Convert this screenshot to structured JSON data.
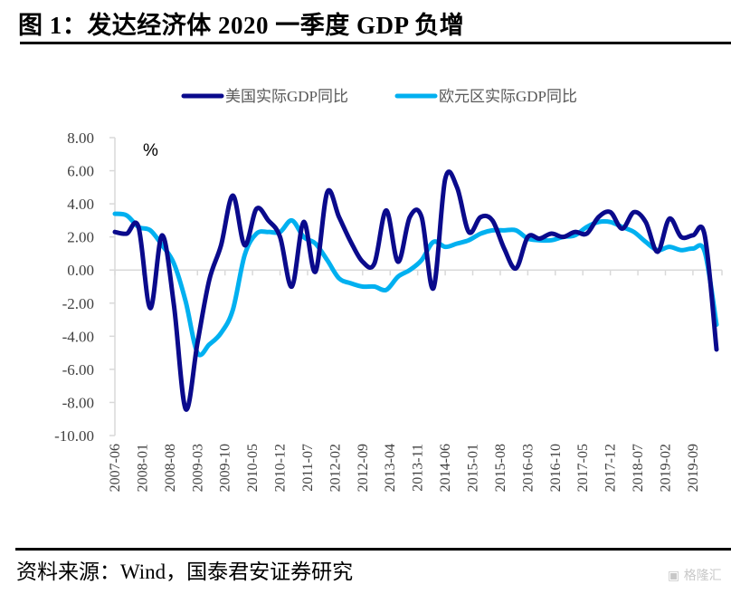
{
  "header": {
    "title": "图 1：发达经济体 2020 一季度 GDP 负增"
  },
  "footer": {
    "source": "资料来源：Wind，国泰君安证券研究",
    "watermark": "格隆汇"
  },
  "chart_data": {
    "type": "line",
    "title": "图 1：发达经济体 2020 一季度 GDP 负增",
    "unit_label": "%",
    "xlabel": "",
    "ylabel": "%",
    "ylim": [
      -10,
      8
    ],
    "yticks": [
      8,
      6,
      4,
      2,
      0,
      -2,
      -4,
      -6,
      -8,
      -10
    ],
    "ytick_labels": [
      "8.00",
      "6.00",
      "4.00",
      "2.00",
      "0.00",
      "-2.00",
      "-4.00",
      "-6.00",
      "-8.00",
      "-10.00"
    ],
    "xtick_labels": [
      "2007-06",
      "2008-01",
      "2008-08",
      "2009-03",
      "2009-10",
      "2010-05",
      "2010-12",
      "2011-07",
      "2012-02",
      "2012-09",
      "2013-04",
      "2013-11",
      "2014-06",
      "2015-01",
      "2015-08",
      "2016-03",
      "2016-10",
      "2017-05",
      "2017-12",
      "2018-07",
      "2019-02",
      "2019-09"
    ],
    "grid": false,
    "legend_position": "top",
    "x": [
      "2007Q2",
      "2007Q3",
      "2007Q4",
      "2008Q1",
      "2008Q2",
      "2008Q3",
      "2008Q4",
      "2009Q1",
      "2009Q2",
      "2009Q3",
      "2009Q4",
      "2010Q1",
      "2010Q2",
      "2010Q3",
      "2010Q4",
      "2011Q1",
      "2011Q2",
      "2011Q3",
      "2011Q4",
      "2012Q1",
      "2012Q2",
      "2012Q3",
      "2012Q4",
      "2013Q1",
      "2013Q2",
      "2013Q3",
      "2013Q4",
      "2014Q1",
      "2014Q2",
      "2014Q3",
      "2014Q4",
      "2015Q1",
      "2015Q2",
      "2015Q3",
      "2015Q4",
      "2016Q1",
      "2016Q2",
      "2016Q3",
      "2016Q4",
      "2017Q1",
      "2017Q2",
      "2017Q3",
      "2017Q4",
      "2018Q1",
      "2018Q2",
      "2018Q3",
      "2018Q4",
      "2019Q1",
      "2019Q2",
      "2019Q3",
      "2019Q4",
      "2020Q1"
    ],
    "series": [
      {
        "name": "美国实际GDP同比",
        "color": "#0a0a8c",
        "values": [
          2.3,
          2.2,
          2.6,
          -2.3,
          2.1,
          -2.1,
          -8.4,
          -4.4,
          -0.6,
          1.5,
          4.5,
          1.5,
          3.7,
          3.0,
          2.0,
          -1.0,
          2.9,
          -0.1,
          4.7,
          3.2,
          1.7,
          0.5,
          0.4,
          3.6,
          0.5,
          3.2,
          3.2,
          -1.1,
          5.5,
          5.0,
          2.3,
          3.2,
          3.0,
          1.3,
          0.1,
          2.0,
          1.9,
          2.2,
          2.0,
          2.3,
          2.2,
          3.2,
          3.5,
          2.5,
          3.5,
          2.9,
          1.1,
          3.1,
          2.0,
          2.1,
          2.1,
          -4.8
        ]
      },
      {
        "name": "欧元区实际GDP同比",
        "color": "#00b0f0",
        "values": [
          3.4,
          3.3,
          2.6,
          2.4,
          1.5,
          0.4,
          -1.9,
          -5.0,
          -4.5,
          -3.8,
          -2.4,
          0.9,
          2.2,
          2.3,
          2.3,
          3.0,
          2.0,
          1.6,
          0.6,
          -0.5,
          -0.8,
          -1.0,
          -1.0,
          -1.2,
          -0.4,
          0.0,
          0.6,
          1.7,
          1.4,
          1.6,
          1.8,
          2.2,
          2.4,
          2.4,
          2.4,
          1.9,
          1.8,
          1.8,
          2.0,
          2.1,
          2.6,
          2.9,
          2.9,
          2.6,
          2.3,
          1.7,
          1.2,
          1.4,
          1.2,
          1.3,
          1.1,
          -3.3
        ]
      }
    ]
  }
}
